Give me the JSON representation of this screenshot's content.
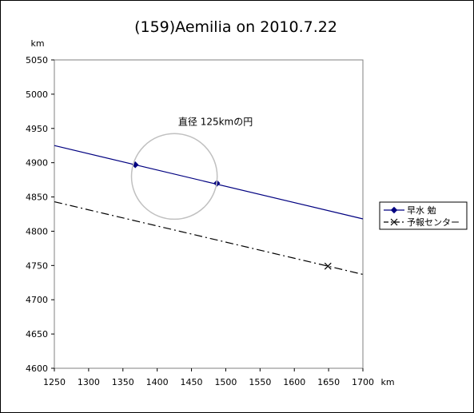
{
  "chart_data": {
    "type": "line",
    "title": "(159)Aemilia on 2010.7.22",
    "xlabel": "km",
    "ylabel": "km",
    "xlim": [
      1250,
      1700
    ],
    "ylim": [
      4600,
      5050
    ],
    "xticks": [
      1250,
      1300,
      1350,
      1400,
      1450,
      1500,
      1550,
      1600,
      1650,
      1700
    ],
    "yticks": [
      4600,
      4650,
      4700,
      4750,
      4800,
      4850,
      4900,
      4950,
      5000,
      5050
    ],
    "grid": false,
    "legend_position": "right",
    "series": [
      {
        "name": "早水 勉",
        "style": "solid",
        "color": "#000080",
        "marker": "diamond",
        "line": [
          [
            1250,
            4925
          ],
          [
            1700,
            4818
          ]
        ],
        "points": [
          [
            1368,
            4897
          ],
          [
            1487,
            4870
          ]
        ]
      },
      {
        "name": "予報センター",
        "style": "dashdot",
        "color": "#000000",
        "marker": "x",
        "line": [
          [
            1250,
            4843
          ],
          [
            1700,
            4737
          ]
        ],
        "points": [
          [
            1649,
            4749
          ]
        ]
      }
    ],
    "annotations": [
      {
        "text": "直径 125kmの円",
        "x": 1485,
        "y": 4955
      }
    ],
    "circle": {
      "center": [
        1425,
        4880
      ],
      "diameter": 125,
      "color": "#c0c0c0"
    }
  }
}
